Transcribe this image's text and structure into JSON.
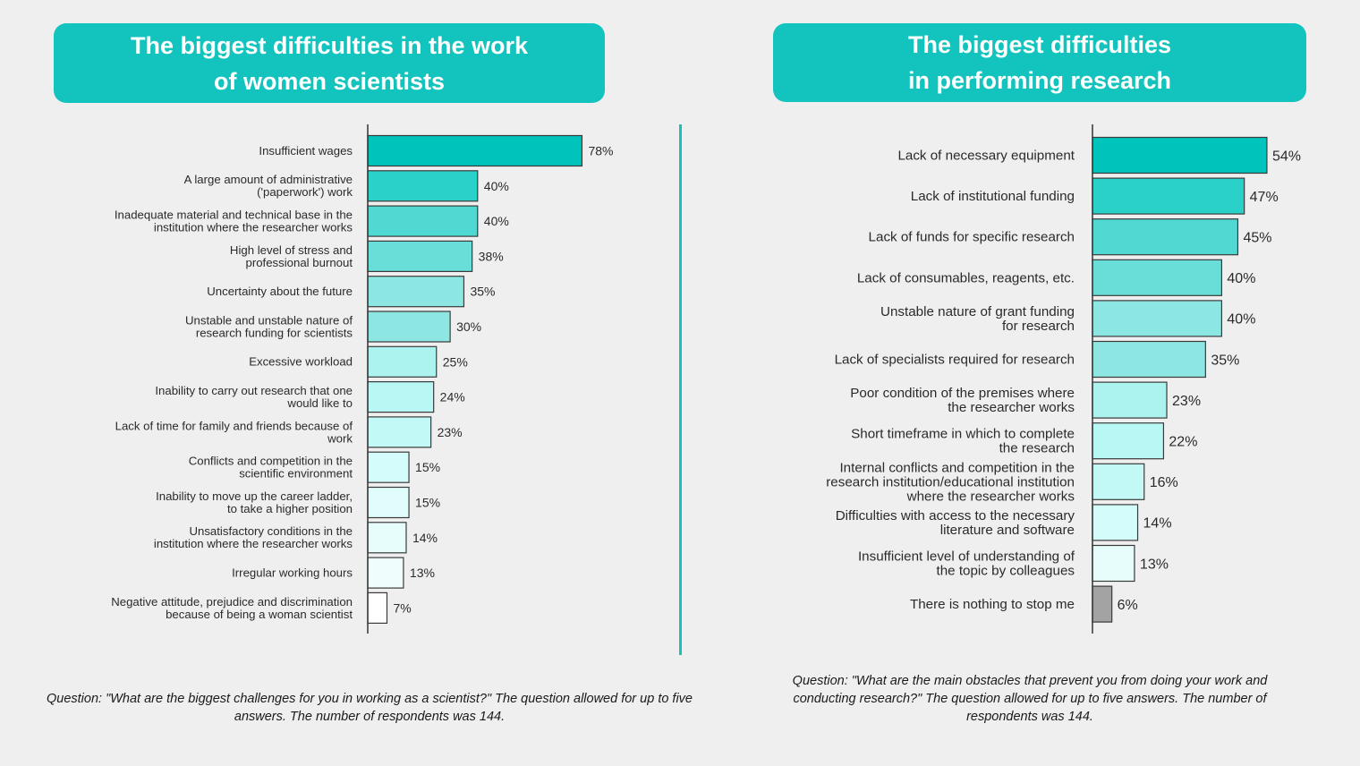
{
  "chart_data": [
    {
      "type": "bar",
      "orientation": "horizontal",
      "title": "The biggest difficulties in the work\nof women scientists",
      "xlabel": "",
      "ylabel": "",
      "xlim": [
        0,
        80
      ],
      "grid": false,
      "value_suffix": "%",
      "categories": [
        "Insufficient wages",
        "A large amount of administrative\n('paperwork') work",
        "Inadequate material and technical base in the\ninstitution where the researcher works",
        "High level of stress and\nprofessional burnout",
        "Uncertainty about the future",
        "Unstable and unstable nature of\nresearch funding for scientists",
        "Excessive workload",
        "Inability to carry out research that one\nwould like to",
        "Lack of time for family and friends because of\nwork",
        "Conflicts and competition in the\nscientific environment",
        "Inability to move up the career ladder,\nto take a higher position",
        "Unsatisfactory conditions in the\ninstitution where the researcher works",
        "Irregular working hours",
        "Negative attitude, prejudice and discrimination\nbecause of being a woman scientist"
      ],
      "values": [
        78,
        40,
        40,
        38,
        35,
        30,
        25,
        24,
        23,
        15,
        15,
        14,
        13,
        7
      ],
      "labels": [
        "78%",
        "40%",
        "40%",
        "38%",
        "35%",
        "30%",
        "25%",
        "24%",
        "23%",
        "15%",
        "15%",
        "14%",
        "13%",
        "7%"
      ],
      "colors": [
        "#00c4bc",
        "#2ad1c9",
        "#4fd9d2",
        "#69ded8",
        "#8ce6e2",
        "#8ee6e2",
        "#acf2ef",
        "#b7f7f4",
        "#c2f9f6",
        "#d3fcfb",
        "#e0fdfc",
        "#e7fdfc",
        "#f0fdfd",
        "#ffffff"
      ],
      "footnote": "Question: \"What are the biggest challenges for you in working as a scientist?\" The question allowed for up to five answers. The number of respondents was 144."
    },
    {
      "type": "bar",
      "orientation": "horizontal",
      "title": "The biggest difficulties\nin performing research",
      "xlabel": "",
      "ylabel": "",
      "xlim": [
        0,
        60
      ],
      "grid": false,
      "value_suffix": "%",
      "categories": [
        "Lack of necessary equipment",
        "Lack of institutional funding",
        "Lack of funds for specific research",
        "Lack of consumables, reagents, etc.",
        "Unstable nature of grant funding\nfor research",
        "Lack of specialists required for research",
        "Poor condition of the premises where\nthe researcher works",
        "Short timeframe in which to complete\nthe research",
        "Internal conflicts and competition in the\nresearch institution/educational institution\nwhere the researcher works",
        "Difficulties with access to the necessary\nliterature and software",
        "Insufficient level of understanding of\nthe topic by colleagues",
        "There is nothing to stop me"
      ],
      "values": [
        54,
        47,
        45,
        40,
        40,
        35,
        23,
        22,
        16,
        14,
        13,
        6
      ],
      "labels": [
        "54%",
        "47%",
        "45%",
        "40%",
        "40%",
        "35%",
        "23%",
        "22%",
        "16%",
        "14%",
        "13%",
        "6%"
      ],
      "colors": [
        "#00c4bc",
        "#2ad1c9",
        "#4fd9d2",
        "#69ded8",
        "#8ce6e2",
        "#8ee6e2",
        "#acf2ef",
        "#b7f7f4",
        "#c2f9f6",
        "#d3fcfb",
        "#e7fdfc",
        "#a3a3a3"
      ],
      "footnote": "Question: \"What are the main obstacles that prevent you from doing your work and conducting research?\" The question allowed for up to five answers. The number of respondents was 144."
    }
  ],
  "accent_color": "#12c4bd"
}
